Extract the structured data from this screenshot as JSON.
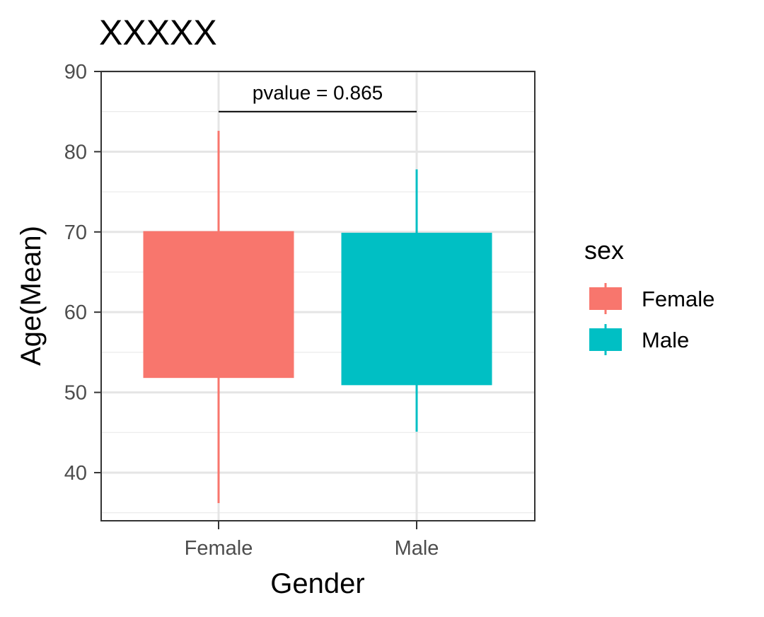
{
  "chart_data": {
    "type": "bar",
    "title": "XXXXX",
    "xlabel": "Gender",
    "ylabel": "Age(Mean)",
    "categories": [
      "Female",
      "Male"
    ],
    "ylim": [
      34,
      90
    ],
    "yticks": [
      40,
      50,
      60,
      70,
      80,
      90
    ],
    "grid": true,
    "colors": [
      "#F8766D",
      "#00BFC4"
    ],
    "bars": [
      {
        "category": "Female",
        "low": 51.8,
        "high": 70.1,
        "whisker_low": 36.2,
        "whisker_high": 82.6
      },
      {
        "category": "Male",
        "low": 50.9,
        "high": 69.9,
        "whisker_low": 45.1,
        "whisker_high": 77.8
      }
    ],
    "annotation": {
      "text": "pvalue = 0.865",
      "y": 85
    },
    "legend": {
      "title": "sex",
      "position": "right",
      "entries": [
        "Female",
        "Male"
      ]
    }
  }
}
